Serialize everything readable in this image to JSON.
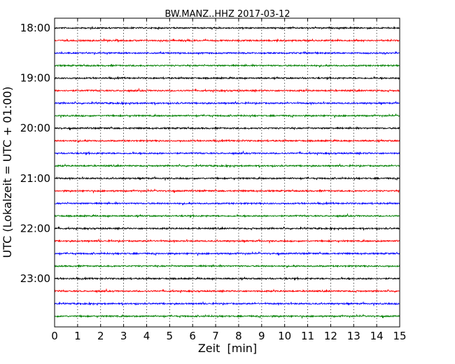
{
  "chart_data": {
    "type": "line",
    "title": "BW.MANZ..HHZ 2017-03-12",
    "xlabel": "Zeit  [min]",
    "ylabel": "UTC (Lokalzeit = UTC + 01:00)",
    "xlim": [
      0,
      15
    ],
    "x_ticks": [
      0,
      1,
      2,
      3,
      4,
      5,
      6,
      7,
      8,
      9,
      10,
      11,
      12,
      13,
      14,
      15
    ],
    "x_tick_labels": [
      "0",
      "1",
      "2",
      "3",
      "4",
      "5",
      "6",
      "7",
      "8",
      "9",
      "10",
      "11",
      "12",
      "13",
      "14",
      "15"
    ],
    "y_tick_labels": [
      "18:00",
      "19:00",
      "20:00",
      "21:00",
      "22:00",
      "23:00"
    ],
    "grid": "vertical dotted at each minute",
    "trace_start_times": [
      "18:00",
      "18:15",
      "18:30",
      "18:45",
      "19:00",
      "19:15",
      "19:30",
      "19:45",
      "20:00",
      "20:15",
      "20:30",
      "20:45",
      "21:00",
      "21:15",
      "21:30",
      "21:45",
      "22:00",
      "22:15",
      "22:30",
      "22:45",
      "23:00",
      "23:15",
      "23:30",
      "23:45"
    ],
    "trace_colors": [
      "#000000",
      "#ff0000",
      "#0000ff",
      "#008000"
    ],
    "trace_amplitude_note": "low-level noise on every trace"
  }
}
